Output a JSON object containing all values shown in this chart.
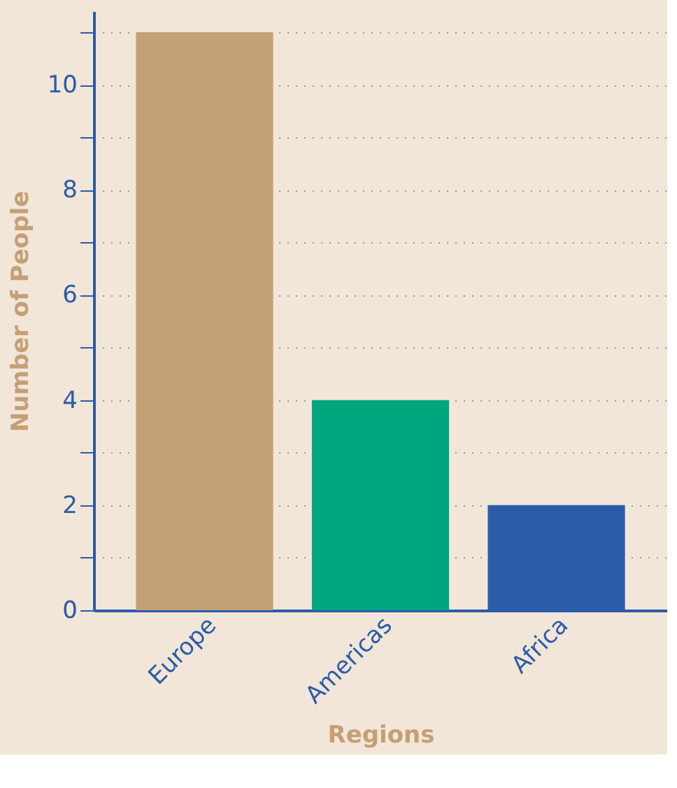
{
  "chart_data": {
    "type": "bar",
    "xlabel": "Regions",
    "ylabel": "Number of People",
    "categories": [
      "Europe",
      "Americas",
      "Africa"
    ],
    "values": [
      11,
      4,
      2
    ],
    "colors": [
      "#c4a077",
      "#00a67e",
      "#2a5caa"
    ],
    "ylim": [
      0,
      11.4
    ],
    "yticks": [
      0,
      {
        "value": 1,
        "label": null
      },
      2,
      {
        "value": 3,
        "label": null
      },
      4,
      {
        "value": 5,
        "label": null
      },
      6,
      {
        "value": 7,
        "label": null
      },
      8,
      {
        "value": 9,
        "label": null
      },
      10,
      {
        "value": 11,
        "label": null
      }
    ],
    "grid": "y"
  }
}
